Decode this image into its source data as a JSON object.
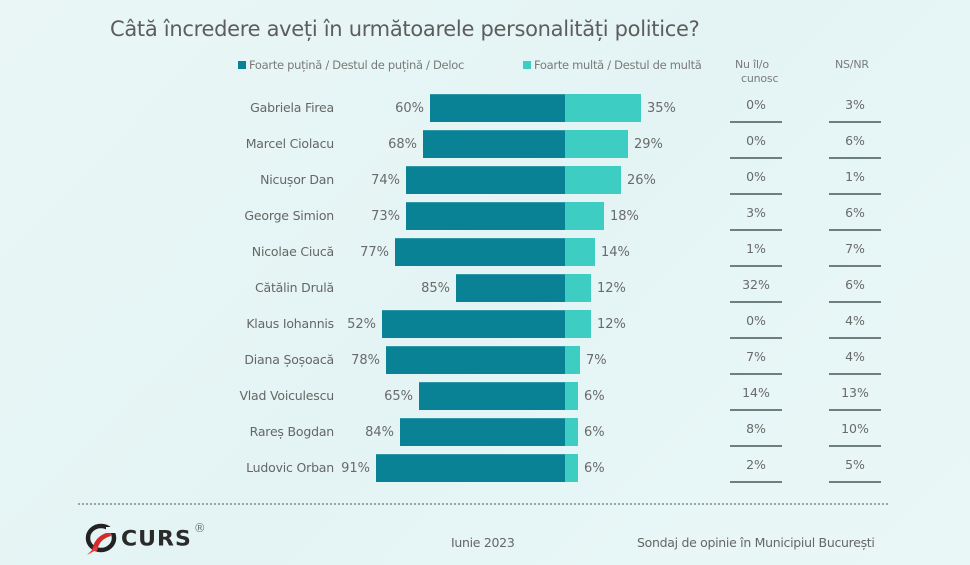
{
  "title": "Câtă încredere aveți în următoarele personalități politice?",
  "legend": {
    "negative": {
      "label": "Foarte puțină / Destul de puțină / Deloc",
      "color": "#0a8296"
    },
    "positive": {
      "label": "Foarte multă / Destul de multă",
      "color": "#3ecdc3"
    }
  },
  "columns": {
    "unknown": "Nu îl/o cunosc",
    "unknown_line1": "Nu îl/o",
    "unknown_line2": "cunosc",
    "nsnr": "NS/NR"
  },
  "rows": [
    {
      "name": "Gabriela Firea",
      "neg": "60%",
      "pos": "35%",
      "unknown": "0%",
      "nsnr": "3%"
    },
    {
      "name": "Marcel Ciolacu",
      "neg": "68%",
      "pos": "29%",
      "unknown": "0%",
      "nsnr": "6%"
    },
    {
      "name": "Nicușor Dan",
      "neg": "74%",
      "pos": "26%",
      "unknown": "0%",
      "nsnr": "1%"
    },
    {
      "name": "George Simion",
      "neg": "73%",
      "pos": "18%",
      "unknown": "3%",
      "nsnr": "6%"
    },
    {
      "name": "Nicolae Ciucă",
      "neg": "77%",
      "pos": "14%",
      "unknown": "1%",
      "nsnr": "7%"
    },
    {
      "name": "Cătălin Drulă",
      "neg": "85%",
      "pos": "12%",
      "unknown": "32%",
      "nsnr": "6%"
    },
    {
      "name": "Klaus Iohannis",
      "neg": "52%",
      "pos": "12%",
      "unknown": "0%",
      "nsnr": "4%"
    },
    {
      "name": "Diana Șoșoacă",
      "neg": "78%",
      "pos": "7%",
      "unknown": "7%",
      "nsnr": "4%"
    },
    {
      "name": "Vlad Voiculescu",
      "neg": "65%",
      "pos": "6%",
      "unknown": "14%",
      "nsnr": "13%"
    },
    {
      "name": "Rareș Bogdan",
      "neg": "84%",
      "pos": "6%",
      "unknown": "8%",
      "nsnr": "10%"
    },
    {
      "name": "Ludovic Orban",
      "neg": "91%",
      "pos": "6%",
      "unknown": "2%",
      "nsnr": "5%"
    }
  ],
  "footer": {
    "logo_text": "CURS",
    "logo_reg": "®",
    "date": "Iunie 2023",
    "source": "Sondaj de opinie în Municipiul București"
  },
  "chart_data": {
    "type": "bar",
    "orientation": "horizontal-diverging",
    "title": "Câtă încredere aveți în următoarele personalități politice?",
    "categories": [
      "Gabriela Firea",
      "Marcel Ciolacu",
      "Nicușor Dan",
      "George Simion",
      "Nicolae Ciucă",
      "Cătălin Drulă",
      "Klaus Iohannis",
      "Diana Șoșoacă",
      "Vlad Voiculescu",
      "Rareș Bogdan",
      "Ludovic Orban"
    ],
    "series": [
      {
        "name": "Foarte puțină / Destul de puțină / Deloc",
        "values": [
          60,
          68,
          74,
          73,
          77,
          85,
          52,
          78,
          65,
          84,
          91
        ],
        "color": "#0a8296"
      },
      {
        "name": "Foarte multă / Destul de multă",
        "values": [
          35,
          29,
          26,
          18,
          14,
          12,
          12,
          7,
          6,
          6,
          6
        ],
        "color": "#3ecdc3"
      },
      {
        "name": "Nu îl/o cunosc",
        "values": [
          0,
          0,
          0,
          3,
          1,
          32,
          0,
          7,
          14,
          8,
          2
        ]
      },
      {
        "name": "NS/NR",
        "values": [
          3,
          6,
          1,
          6,
          7,
          6,
          4,
          4,
          13,
          10,
          5
        ]
      }
    ],
    "bar_pixels": {
      "center_x": 565,
      "neg_left_x": [
        430,
        423,
        406,
        406,
        395,
        456,
        382,
        386,
        419,
        400,
        376
      ],
      "pos_right_x": [
        641,
        628,
        621,
        604,
        595,
        591,
        591,
        580,
        578,
        578,
        578
      ]
    },
    "xlabel": "",
    "ylabel": "",
    "unit": "%",
    "legend_position": "top",
    "grid": false,
    "footer_date": "Iunie 2023",
    "footer_source": "Sondaj de opinie în Municipiul București"
  }
}
